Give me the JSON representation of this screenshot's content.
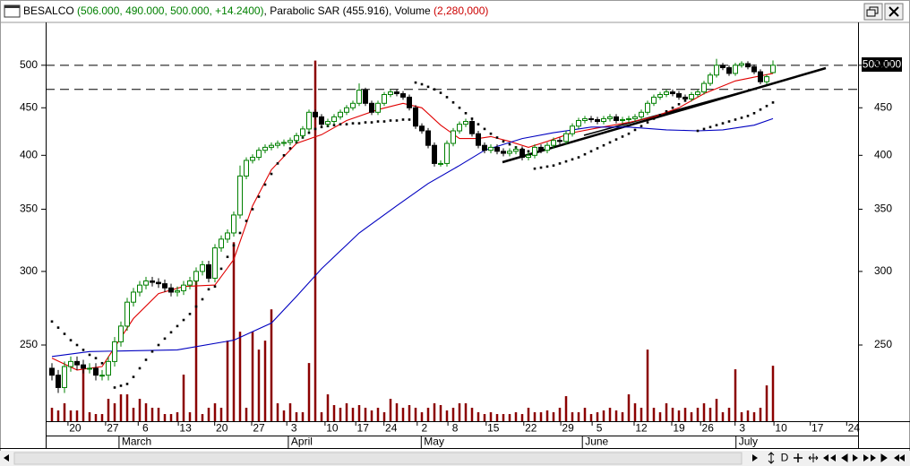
{
  "chart_data": {
    "type": "candlestick",
    "title_parts": [
      {
        "text": "BESALCO ",
        "color": "#000000"
      },
      {
        "text": "(506.000, 490.000, 500.000, +14.2400)",
        "color": "#008000"
      },
      {
        "text": ", Parabolic SAR ",
        "color": "#000000"
      },
      {
        "text": "(455.916)",
        "color": "#000000"
      },
      {
        "text": ", Volume ",
        "color": "#000000"
      },
      {
        "text": "(2,280,000)",
        "color": "#cc0000"
      }
    ],
    "last_value_label": "500.000",
    "log_scale": true,
    "xlim": [
      -1,
      128.57
    ],
    "ylim": [
      207,
      556
    ],
    "yticks": [
      250,
      300,
      350,
      400,
      450,
      500
    ],
    "xticks": [
      {
        "value": 3.7,
        "label": "20"
      },
      {
        "value": 9.7,
        "label": "27"
      },
      {
        "value": 14.9,
        "label": "6"
      },
      {
        "value": 21.3,
        "label": "13"
      },
      {
        "value": 27.1,
        "label": "20"
      },
      {
        "value": 33,
        "label": "27"
      },
      {
        "value": 38.6,
        "label": "3"
      },
      {
        "value": 44.7,
        "label": "10"
      },
      {
        "value": 49.6,
        "label": "17"
      },
      {
        "value": 54.1,
        "label": "24"
      },
      {
        "value": 59.4,
        "label": "2"
      },
      {
        "value": 64.3,
        "label": "8"
      },
      {
        "value": 70.4,
        "label": "15"
      },
      {
        "value": 76.4,
        "label": "22"
      },
      {
        "value": 82.3,
        "label": "29"
      },
      {
        "value": 87.3,
        "label": "5"
      },
      {
        "value": 94,
        "label": "12"
      },
      {
        "value": 100,
        "label": "19"
      },
      {
        "value": 104.6,
        "label": "26"
      },
      {
        "value": 110.1,
        "label": "3"
      },
      {
        "value": 116.3,
        "label": "10"
      },
      {
        "value": 122.1,
        "label": "17"
      },
      {
        "value": 127.9,
        "label": "24"
      }
    ],
    "month_ticks": [
      {
        "value": 10.7,
        "label": "March"
      },
      {
        "value": 37.7,
        "label": "April"
      },
      {
        "value": 58.9,
        "label": "May"
      },
      {
        "value": 84.6,
        "label": "June"
      },
      {
        "value": 109.1,
        "label": "July"
      }
    ],
    "up_color": "#008000",
    "down_color": "#000000",
    "open": [
      236,
      232,
      225,
      237,
      240,
      238,
      236,
      236,
      232,
      232,
      240,
      252,
      262,
      278,
      285,
      290,
      293,
      292,
      291,
      288,
      285,
      286,
      290,
      293,
      300,
      305,
      295,
      318,
      325,
      330,
      345,
      380,
      395,
      398,
      405,
      408,
      410,
      412,
      413,
      415,
      420,
      427,
      445,
      440,
      432,
      435,
      440,
      445,
      450,
      455,
      470,
      455,
      445,
      455,
      465,
      468,
      466,
      462,
      450,
      430,
      425,
      410,
      392,
      392,
      412,
      425,
      432,
      435,
      422,
      410,
      405,
      408,
      404,
      402,
      404,
      406,
      398,
      400,
      408,
      405,
      410,
      415,
      414,
      422,
      430,
      436,
      438,
      437,
      435,
      438,
      440,
      436,
      437,
      438,
      440,
      445,
      455,
      462,
      465,
      468,
      466,
      462,
      460,
      465,
      468,
      478,
      488,
      500,
      497,
      490,
      500,
      502,
      498,
      492,
      480,
      491
    ],
    "high": [
      239,
      235,
      240,
      243,
      243,
      241,
      239,
      239,
      235,
      243,
      255,
      265,
      281,
      288,
      293,
      296,
      296,
      295,
      294,
      291,
      289,
      293,
      296,
      303,
      308,
      308,
      321,
      328,
      333,
      348,
      390,
      398,
      401,
      408,
      411,
      413,
      415,
      416,
      418,
      423,
      430,
      448,
      448,
      443,
      438,
      443,
      448,
      453,
      458,
      478,
      473,
      458,
      458,
      468,
      471,
      471,
      469,
      465,
      453,
      433,
      428,
      413,
      395,
      415,
      428,
      435,
      438,
      438,
      425,
      413,
      411,
      411,
      407,
      407,
      409,
      409,
      403,
      411,
      411,
      413,
      418,
      418,
      425,
      433,
      439,
      441,
      441,
      440,
      441,
      443,
      443,
      440,
      441,
      443,
      448,
      458,
      465,
      468,
      471,
      471,
      469,
      465,
      468,
      471,
      481,
      491,
      508,
      503,
      500,
      503,
      505,
      505,
      501,
      495,
      489,
      506
    ],
    "low": [
      229,
      222,
      222,
      234,
      235,
      233,
      233,
      229,
      229,
      229,
      237,
      249,
      259,
      275,
      282,
      287,
      289,
      288,
      285,
      282,
      282,
      283,
      287,
      290,
      297,
      292,
      292,
      315,
      322,
      327,
      342,
      377,
      392,
      395,
      402,
      405,
      407,
      409,
      410,
      412,
      417,
      424,
      437,
      429,
      429,
      432,
      437,
      442,
      447,
      452,
      452,
      442,
      442,
      452,
      462,
      463,
      459,
      447,
      427,
      422,
      407,
      389,
      389,
      389,
      409,
      422,
      429,
      419,
      407,
      402,
      402,
      401,
      399,
      399,
      401,
      395,
      395,
      397,
      402,
      402,
      407,
      411,
      411,
      419,
      427,
      433,
      434,
      432,
      432,
      435,
      433,
      433,
      434,
      435,
      437,
      442,
      452,
      459,
      462,
      463,
      459,
      457,
      457,
      462,
      465,
      475,
      485,
      494,
      487,
      487,
      497,
      495,
      489,
      477,
      477,
      490
    ],
    "close": [
      232,
      225,
      237,
      240,
      238,
      236,
      236,
      232,
      232,
      240,
      252,
      262,
      278,
      285,
      290,
      293,
      292,
      291,
      288,
      285,
      286,
      290,
      293,
      300,
      305,
      295,
      318,
      325,
      330,
      345,
      380,
      395,
      398,
      405,
      408,
      410,
      412,
      413,
      415,
      420,
      427,
      445,
      440,
      432,
      435,
      440,
      445,
      450,
      455,
      470,
      455,
      445,
      455,
      465,
      468,
      466,
      462,
      450,
      430,
      425,
      410,
      392,
      392,
      412,
      425,
      432,
      435,
      422,
      410,
      405,
      408,
      404,
      402,
      404,
      406,
      398,
      400,
      408,
      405,
      410,
      415,
      414,
      422,
      430,
      436,
      438,
      437,
      435,
      438,
      440,
      436,
      437,
      438,
      440,
      445,
      455,
      462,
      465,
      468,
      466,
      462,
      460,
      465,
      468,
      478,
      488,
      500,
      497,
      490,
      500,
      502,
      498,
      492,
      480,
      486,
      500
    ],
    "sar": {
      "color": "#000000",
      "values": [
        265,
        261,
        257,
        253,
        250,
        247,
        244,
        242,
        239,
        237,
        225,
        226,
        227,
        231,
        236,
        241,
        246,
        250,
        254,
        258,
        262,
        266,
        270,
        275,
        280,
        287,
        289,
        302,
        311,
        320,
        330,
        340,
        350,
        361,
        372,
        382,
        392,
        400,
        407,
        413,
        418,
        423,
        427,
        429,
        430,
        431,
        432,
        432,
        433,
        433,
        434,
        434,
        435,
        435,
        436,
        436,
        437,
        437,
        479,
        477,
        474,
        471,
        467,
        462,
        456,
        450,
        444,
        438,
        432,
        427,
        422,
        418,
        414,
        411,
        408,
        406,
        404,
        387,
        388,
        389,
        390,
        392,
        394,
        396,
        398,
        401,
        404,
        407,
        410,
        413,
        416,
        419,
        422,
        426,
        430,
        434,
        438,
        442,
        446,
        450,
        454,
        458,
        462,
        425,
        427,
        429,
        431,
        433,
        435,
        437,
        439,
        441,
        444,
        448,
        452,
        455.916
      ]
    },
    "moving_averages": [
      {
        "color": "#e00000",
        "x": [
          0,
          4,
          8,
          13,
          17,
          21,
          26,
          29,
          32,
          35,
          39,
          43,
          47,
          52,
          56,
          59,
          62,
          65,
          68,
          70,
          73,
          76,
          79,
          83,
          87,
          92,
          96,
          100,
          104,
          109,
          113,
          115
        ],
        "values": [
          242,
          235,
          237,
          267,
          284,
          289,
          290,
          309,
          353,
          386,
          412,
          421,
          436,
          448,
          455,
          450,
          431,
          417,
          417,
          419,
          414,
          408,
          414,
          423,
          428,
          434,
          440,
          450,
          466,
          481,
          487,
          490
        ]
      },
      {
        "color": "#0000c0",
        "x": [
          0,
          6,
          20,
          29,
          35,
          39,
          43,
          49,
          55,
          60,
          65,
          69,
          75,
          80,
          86,
          92,
          98,
          103,
          107,
          112,
          115
        ],
        "values": [
          243,
          246,
          247,
          253,
          264,
          282,
          302,
          330,
          353,
          373,
          390,
          405,
          417,
          423,
          429,
          429,
          426,
          425,
          426,
          431,
          438
        ]
      }
    ],
    "hlines": [
      500,
      471
    ],
    "volume": {
      "color": "#8b0000",
      "values": [
        552000,
        442000,
        736000,
        442000,
        442000,
        2134000,
        368000,
        294000,
        294000,
        920000,
        736000,
        1104000,
        1104000,
        552000,
        920000,
        736000,
        552000,
        552000,
        294000,
        294000,
        368000,
        1914000,
        368000,
        6072000,
        294000,
        552000,
        736000,
        552000,
        3312000,
        7360000,
        3680000,
        552000,
        3680000,
        2944000,
        3312000,
        4600000,
        736000,
        442000,
        736000,
        368000,
        368000,
        2392000,
        14830000,
        368000,
        1104000,
        662000,
        552000,
        736000,
        552000,
        662000,
        552000,
        442000,
        552000,
        368000,
        920000,
        736000,
        552000,
        662000,
        552000,
        368000,
        552000,
        736000,
        662000,
        442000,
        552000,
        736000,
        736000,
        552000,
        368000,
        294000,
        368000,
        294000,
        294000,
        294000,
        368000,
        294000,
        552000,
        368000,
        368000,
        442000,
        368000,
        552000,
        1030000,
        368000,
        368000,
        552000,
        294000,
        368000,
        442000,
        552000,
        442000,
        368000,
        1104000,
        736000,
        552000,
        2944000,
        552000,
        368000,
        736000,
        552000,
        442000,
        552000,
        368000,
        552000,
        736000,
        552000,
        920000,
        368000,
        552000,
        2134000,
        368000,
        442000,
        368000,
        552000,
        1472000,
        2280000
      ]
    },
    "y2lim": [
      0,
      16400000
    ],
    "toolbar_label": "D"
  }
}
